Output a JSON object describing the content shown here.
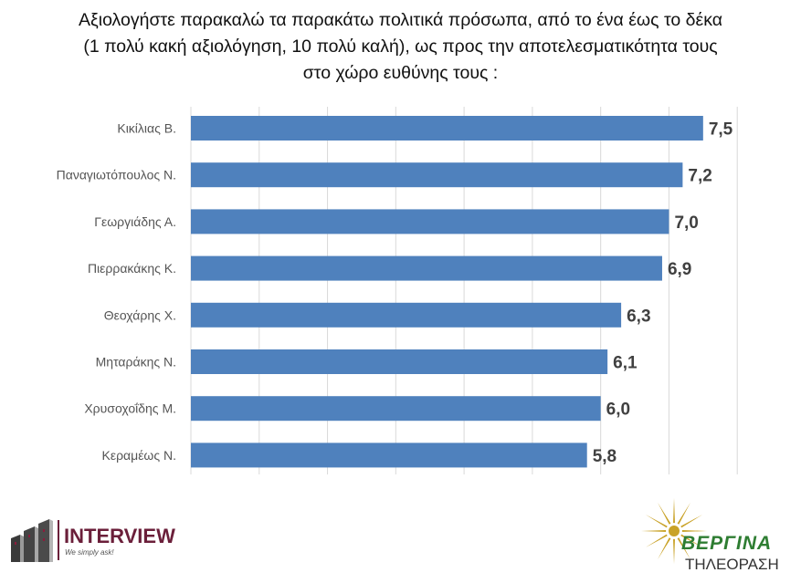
{
  "title_lines": [
    "Αξιολογήστε παρακαλώ τα παρακάτω πολιτικά πρόσωπα, από το ένα έως το δέκα",
    "(1 πολύ κακή αξιολόγηση, 10 πολύ καλή), ως προς την αποτελεσματικότητα τους",
    "στο χώρο ευθύνης τους :"
  ],
  "chart_data": {
    "type": "bar",
    "orientation": "horizontal",
    "categories": [
      "Κικίλιας Β.",
      "Παναγιωτόπουλος Ν.",
      "Γεωργιάδης Α.",
      "Πιερρακάκης Κ.",
      "Θεοχάρης Χ.",
      "Μηταράκης Ν.",
      "Χρυσοχοΐδης Μ.",
      "Κεραμέως Ν."
    ],
    "values": [
      7.5,
      7.2,
      7.0,
      6.9,
      6.3,
      6.1,
      6.0,
      5.8
    ],
    "value_labels": [
      "7,5",
      "7,2",
      "7,0",
      "6,9",
      "6,3",
      "6,1",
      "6,0",
      "5,8"
    ],
    "xlim": [
      0,
      9
    ],
    "grid": true,
    "bar_color": "#4f81bd"
  },
  "branding": {
    "left_name": "INTERVIEW",
    "left_tagline": "We simply ask!",
    "right_name": "ΒΕΡΓΙΝΑ",
    "right_sub": "ΤΗΛΕΟΡΑΣΗ"
  },
  "colors": {
    "interview_text": "#6b1f3a",
    "vergina_green": "#2e7d32",
    "vergina_gold": "#c9a227"
  }
}
